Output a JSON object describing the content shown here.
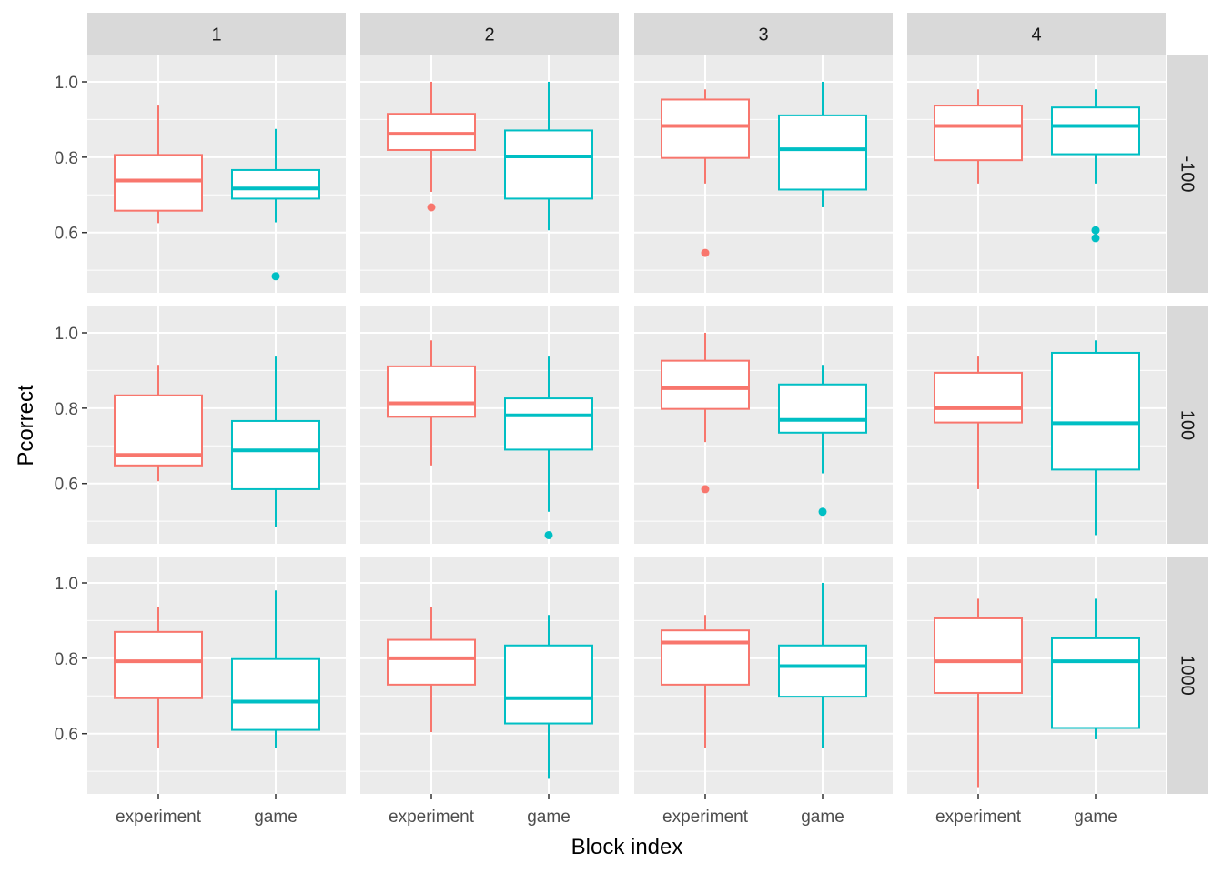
{
  "chart_data": {
    "type": "boxplot",
    "layout": "facet_grid",
    "xlabel": "Block index",
    "ylabel": "Pcorrect",
    "col_facets": [
      "1",
      "2",
      "3",
      "4"
    ],
    "row_facets": [
      "-100",
      "100",
      "1000"
    ],
    "categories": [
      "experiment",
      "game"
    ],
    "colors": {
      "experiment": "#F8766D",
      "game": "#00BFC4",
      "panel": "#EBEBEB",
      "strip": "#D9D9D9",
      "grid": "#FFFFFF"
    },
    "y_ticks": [
      0.6,
      0.8,
      1.0
    ],
    "y_tick_labels": [
      "0.6",
      "0.8",
      "1.0"
    ],
    "ylim": [
      0.44,
      1.07
    ],
    "grid": true,
    "legend": "none",
    "panels": [
      {
        "row": "-100",
        "col": "1",
        "boxes": [
          {
            "category": "experiment",
            "lower_whisker": 0.625,
            "q1": 0.658,
            "median": 0.738,
            "q3": 0.806,
            "upper_whisker": 0.937,
            "outliers": []
          },
          {
            "category": "game",
            "lower_whisker": 0.627,
            "q1": 0.69,
            "median": 0.717,
            "q3": 0.766,
            "upper_whisker": 0.875,
            "outliers": [
              0.484
            ]
          }
        ]
      },
      {
        "row": "-100",
        "col": "2",
        "boxes": [
          {
            "category": "experiment",
            "lower_whisker": 0.708,
            "q1": 0.819,
            "median": 0.862,
            "q3": 0.915,
            "upper_whisker": 1.0,
            "outliers": [
              0.667
            ]
          },
          {
            "category": "game",
            "lower_whisker": 0.606,
            "q1": 0.69,
            "median": 0.802,
            "q3": 0.871,
            "upper_whisker": 1.0,
            "outliers": []
          }
        ]
      },
      {
        "row": "-100",
        "col": "3",
        "boxes": [
          {
            "category": "experiment",
            "lower_whisker": 0.73,
            "q1": 0.798,
            "median": 0.883,
            "q3": 0.953,
            "upper_whisker": 0.98,
            "outliers": [
              0.546
            ]
          },
          {
            "category": "game",
            "lower_whisker": 0.667,
            "q1": 0.714,
            "median": 0.821,
            "q3": 0.911,
            "upper_whisker": 1.0,
            "outliers": []
          }
        ]
      },
      {
        "row": "-100",
        "col": "4",
        "boxes": [
          {
            "category": "experiment",
            "lower_whisker": 0.73,
            "q1": 0.792,
            "median": 0.883,
            "q3": 0.937,
            "upper_whisker": 0.98,
            "outliers": []
          },
          {
            "category": "game",
            "lower_whisker": 0.73,
            "q1": 0.808,
            "median": 0.883,
            "q3": 0.932,
            "upper_whisker": 0.98,
            "outliers": [
              0.606,
              0.585
            ]
          }
        ]
      },
      {
        "row": "100",
        "col": "1",
        "boxes": [
          {
            "category": "experiment",
            "lower_whisker": 0.606,
            "q1": 0.648,
            "median": 0.676,
            "q3": 0.834,
            "upper_whisker": 0.915,
            "outliers": []
          },
          {
            "category": "game",
            "lower_whisker": 0.484,
            "q1": 0.585,
            "median": 0.688,
            "q3": 0.766,
            "upper_whisker": 0.937,
            "outliers": []
          }
        ]
      },
      {
        "row": "100",
        "col": "2",
        "boxes": [
          {
            "category": "experiment",
            "lower_whisker": 0.648,
            "q1": 0.777,
            "median": 0.813,
            "q3": 0.911,
            "upper_whisker": 0.98,
            "outliers": []
          },
          {
            "category": "game",
            "lower_whisker": 0.525,
            "q1": 0.69,
            "median": 0.781,
            "q3": 0.826,
            "upper_whisker": 0.937,
            "outliers": [
              0.463
            ]
          }
        ]
      },
      {
        "row": "100",
        "col": "3",
        "boxes": [
          {
            "category": "experiment",
            "lower_whisker": 0.71,
            "q1": 0.798,
            "median": 0.853,
            "q3": 0.926,
            "upper_whisker": 1.0,
            "outliers": [
              0.585
            ]
          },
          {
            "category": "game",
            "lower_whisker": 0.627,
            "q1": 0.735,
            "median": 0.769,
            "q3": 0.863,
            "upper_whisker": 0.915,
            "outliers": [
              0.525
            ]
          }
        ]
      },
      {
        "row": "100",
        "col": "4",
        "boxes": [
          {
            "category": "experiment",
            "lower_whisker": 0.585,
            "q1": 0.762,
            "median": 0.8,
            "q3": 0.894,
            "upper_whisker": 0.937,
            "outliers": []
          },
          {
            "category": "game",
            "lower_whisker": 0.463,
            "q1": 0.637,
            "median": 0.76,
            "q3": 0.947,
            "upper_whisker": 0.98,
            "outliers": []
          }
        ]
      },
      {
        "row": "1000",
        "col": "1",
        "boxes": [
          {
            "category": "experiment",
            "lower_whisker": 0.563,
            "q1": 0.694,
            "median": 0.792,
            "q3": 0.87,
            "upper_whisker": 0.937,
            "outliers": []
          },
          {
            "category": "game",
            "lower_whisker": 0.563,
            "q1": 0.61,
            "median": 0.685,
            "q3": 0.798,
            "upper_whisker": 0.98,
            "outliers": []
          }
        ]
      },
      {
        "row": "1000",
        "col": "2",
        "boxes": [
          {
            "category": "experiment",
            "lower_whisker": 0.604,
            "q1": 0.73,
            "median": 0.8,
            "q3": 0.849,
            "upper_whisker": 0.937,
            "outliers": []
          },
          {
            "category": "game",
            "lower_whisker": 0.48,
            "q1": 0.627,
            "median": 0.694,
            "q3": 0.834,
            "upper_whisker": 0.915,
            "outliers": []
          }
        ]
      },
      {
        "row": "1000",
        "col": "3",
        "boxes": [
          {
            "category": "experiment",
            "lower_whisker": 0.563,
            "q1": 0.73,
            "median": 0.842,
            "q3": 0.874,
            "upper_whisker": 0.915,
            "outliers": []
          },
          {
            "category": "game",
            "lower_whisker": 0.563,
            "q1": 0.698,
            "median": 0.779,
            "q3": 0.834,
            "upper_whisker": 1.0,
            "outliers": []
          }
        ]
      },
      {
        "row": "1000",
        "col": "4",
        "boxes": [
          {
            "category": "experiment",
            "lower_whisker": 0.458,
            "q1": 0.708,
            "median": 0.792,
            "q3": 0.906,
            "upper_whisker": 0.958,
            "outliers": []
          },
          {
            "category": "game",
            "lower_whisker": 0.585,
            "q1": 0.615,
            "median": 0.792,
            "q3": 0.853,
            "upper_whisker": 0.958,
            "outliers": []
          }
        ]
      }
    ]
  }
}
